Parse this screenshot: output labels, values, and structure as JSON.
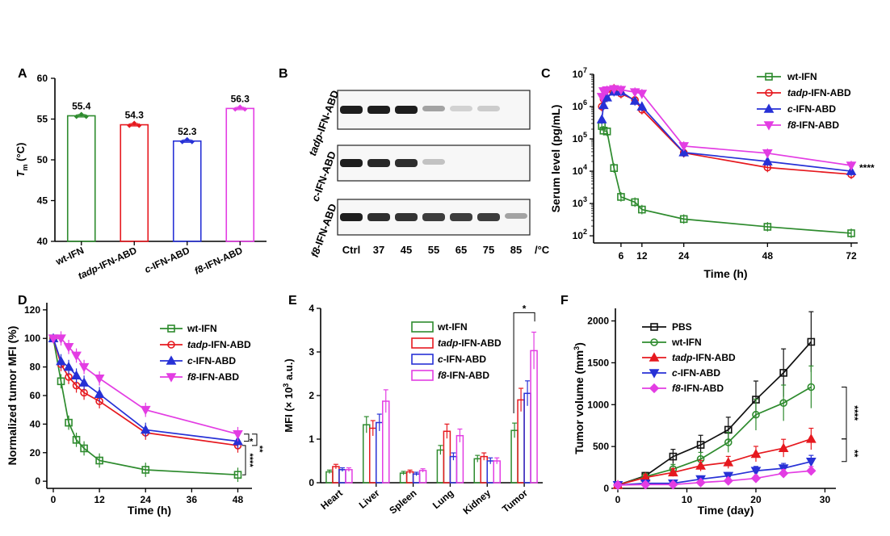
{
  "panels": [
    {
      "id": "A",
      "letter": "A",
      "type": "bar",
      "ylabel_main": "T",
      "ylabel_sub": "m",
      "ylabel_unit": " (°C)",
      "categories": [
        {
          "pre": "",
          "post": "wt-IFN"
        },
        {
          "pre": "tadp",
          "post": "-IFN-ABD"
        },
        {
          "pre": "c",
          "post": "-IFN-ABD"
        },
        {
          "pre": "f8",
          "post": "-IFN-ABD"
        }
      ],
      "values": [
        55.4,
        54.3,
        52.3,
        56.3
      ],
      "value_labels": [
        "55.4",
        "54.3",
        "52.3",
        "56.3"
      ],
      "colors": [
        "#2e8b2e",
        "#e6191f",
        "#2731d6",
        "#e33de3"
      ],
      "ylim": [
        40,
        60
      ],
      "yticks": [
        "40",
        "45",
        "50",
        "55",
        "60"
      ],
      "yticks_v": [
        40,
        45,
        50,
        55,
        60
      ]
    },
    {
      "id": "B",
      "letter": "B",
      "type": "gel",
      "rows": [
        {
          "pre": "tadp",
          "post": "-IFN-ABD",
          "intensities": [
            1.0,
            1.0,
            1.0,
            0.35,
            0.12,
            0.15,
            0
          ]
        },
        {
          "pre": "c",
          "post": "-IFN-ABD",
          "intensities": [
            1.0,
            0.95,
            0.92,
            0.2,
            0,
            0,
            0
          ]
        },
        {
          "pre": "f8",
          "post": "-IFN-ABD",
          "intensities": [
            1.0,
            0.92,
            0.9,
            0.85,
            0.85,
            0.85,
            0.35
          ]
        }
      ],
      "lanes": [
        "Ctrl",
        "37",
        "45",
        "55",
        "65",
        "75",
        "85"
      ],
      "unit": "/°C"
    },
    {
      "id": "C",
      "letter": "C",
      "type": "line",
      "scale": "log",
      "xlabel": "Time (h)",
      "ylabel": "Serum level (pg/mL)",
      "xticks": [
        6,
        12,
        24,
        48,
        72
      ],
      "xlim": [
        0,
        72
      ],
      "yticks_v": [
        100,
        1000,
        10000,
        100000,
        1000000,
        10000000
      ],
      "yticks_base": "10",
      "yticks_exp": [
        "2",
        "3",
        "4",
        "5",
        "6",
        "7"
      ],
      "ylim": [
        60,
        10000000
      ],
      "significance": "****",
      "series": [
        {
          "pre": "",
          "post": "wt-IFN",
          "color": "#2e8b2e",
          "marker": "square",
          "x": [
            0.5,
            1,
            2,
            4,
            6,
            10,
            12,
            24,
            48,
            72
          ],
          "y": [
            250000,
            180000,
            170000,
            12500,
            1600,
            1100,
            650,
            330,
            190,
            120
          ]
        },
        {
          "pre": "tadp",
          "post": "-IFN-ABD",
          "color": "#e6191f",
          "marker": "circle",
          "x": [
            0.5,
            1,
            2,
            4,
            6,
            10,
            12,
            24,
            48,
            72
          ],
          "y": [
            1000000,
            1700000,
            2600000,
            3600000,
            2500000,
            1600000,
            800000,
            37000,
            13000,
            8000
          ]
        },
        {
          "pre": "c",
          "post": "-IFN-ABD",
          "color": "#2731d6",
          "marker": "triangle",
          "x": [
            0.5,
            1,
            2,
            4,
            6,
            10,
            12,
            24,
            48,
            72
          ],
          "y": [
            400000,
            1100000,
            1900000,
            2900000,
            2900000,
            1500000,
            1000000,
            38000,
            20000,
            10000
          ]
        },
        {
          "pre": "f8",
          "post": "-IFN-ABD",
          "color": "#e33de3",
          "marker": "tri-down",
          "x": [
            0.5,
            1,
            2,
            4,
            6,
            10,
            12,
            24,
            48,
            72
          ],
          "y": [
            2000000,
            3000000,
            3200000,
            3500000,
            3300000,
            2800000,
            2500000,
            60000,
            36000,
            15000
          ]
        }
      ]
    },
    {
      "id": "D",
      "letter": "D",
      "type": "line",
      "xlabel": "Time (h)",
      "ylabel": "Normalized tumor MFI (%)",
      "xticks": [
        0,
        12,
        24,
        36,
        48
      ],
      "xlim": [
        0,
        50
      ],
      "yticks": [
        0,
        20,
        40,
        60,
        80,
        100,
        120
      ],
      "ylim": [
        -5,
        125
      ],
      "sig_top": "*",
      "sig_mid": "**",
      "sig_bot": "****",
      "series": [
        {
          "pre": "",
          "post": "wt-IFN",
          "color": "#2e8b2e",
          "marker": "square",
          "x": [
            0,
            2,
            4,
            6,
            8,
            12,
            24,
            48
          ],
          "y": [
            100,
            70,
            41,
            29,
            23,
            14.5,
            8,
            4.5
          ]
        },
        {
          "pre": "tadp",
          "post": "-IFN-ABD",
          "color": "#e6191f",
          "marker": "circle",
          "x": [
            0,
            2,
            4,
            6,
            8,
            12,
            24,
            48
          ],
          "y": [
            100,
            82,
            73,
            67,
            62,
            56,
            34,
            25
          ]
        },
        {
          "pre": "c",
          "post": "-IFN-ABD",
          "color": "#2731d6",
          "marker": "triangle",
          "x": [
            0,
            2,
            4,
            6,
            8,
            12,
            24,
            48
          ],
          "y": [
            100,
            84,
            80,
            74,
            69,
            61,
            36,
            28
          ]
        },
        {
          "pre": "f8",
          "post": "-IFN-ABD",
          "color": "#e33de3",
          "marker": "tri-down",
          "x": [
            0,
            2,
            4,
            6,
            8,
            12,
            24,
            48
          ],
          "y": [
            100,
            100,
            94,
            88,
            80,
            72,
            50,
            33
          ]
        }
      ]
    },
    {
      "id": "E",
      "letter": "E",
      "type": "grouped-bar",
      "ylabel_pre": "MFI (× 10",
      "ylabel_exp": "3",
      "ylabel_post": " a.u.)",
      "categories": [
        "Heart",
        "Liver",
        "Spleen",
        "Lung",
        "Kidney",
        "Tumor"
      ],
      "ylim": [
        0,
        4
      ],
      "yticks": [
        0,
        1,
        2,
        3,
        4
      ],
      "significance": "*",
      "series": [
        {
          "pre": "",
          "post": "wt-IFN",
          "color": "#2e8b2e",
          "values": [
            0.25,
            1.33,
            0.22,
            0.75,
            0.55,
            1.2
          ]
        },
        {
          "pre": "tadp",
          "post": "-IFN-ABD",
          "color": "#e6191f",
          "values": [
            0.37,
            1.25,
            0.25,
            1.18,
            0.6,
            1.9
          ]
        },
        {
          "pre": "c",
          "post": "-IFN-ABD",
          "color": "#2731d6",
          "values": [
            0.3,
            1.38,
            0.2,
            0.6,
            0.5,
            2.05
          ]
        },
        {
          "pre": "f8",
          "post": "-IFN-ABD",
          "color": "#e33de3",
          "values": [
            0.3,
            1.87,
            0.28,
            1.08,
            0.5,
            3.03
          ]
        }
      ]
    },
    {
      "id": "F",
      "letter": "F",
      "type": "line",
      "xlabel": "Time (day)",
      "ylabel_pre": "Tumor volume (mm",
      "ylabel_exp": "3",
      "ylabel_post": ")",
      "xticks": [
        0,
        10,
        20,
        30
      ],
      "xlim": [
        0,
        31
      ],
      "yticks": [
        0,
        500,
        1000,
        1500,
        2000
      ],
      "ylim": [
        0,
        2150
      ],
      "sig_top": "****",
      "sig_bot": "**",
      "series": [
        {
          "pre": "",
          "post": "PBS",
          "color": "#111111",
          "marker": "square",
          "x": [
            0,
            4,
            8,
            12,
            16,
            20,
            24,
            28
          ],
          "y": [
            40,
            150,
            380,
            520,
            700,
            1060,
            1380,
            1750
          ]
        },
        {
          "pre": "",
          "post": "wt-IFN",
          "color": "#2e8b2e",
          "marker": "circle",
          "x": [
            0,
            4,
            8,
            12,
            16,
            20,
            24,
            28
          ],
          "y": [
            40,
            140,
            230,
            350,
            550,
            880,
            1020,
            1210
          ]
        },
        {
          "pre": "tadp",
          "post": "-IFN-ABD",
          "color": "#e6191f",
          "marker": "triangle",
          "x": [
            0,
            4,
            8,
            12,
            16,
            20,
            24,
            28
          ],
          "y": [
            40,
            130,
            190,
            270,
            310,
            410,
            480,
            590
          ]
        },
        {
          "pre": "c",
          "post": "-IFN-ABD",
          "color": "#2731d6",
          "marker": "tri-down",
          "x": [
            0,
            4,
            8,
            12,
            16,
            20,
            24,
            28
          ],
          "y": [
            40,
            60,
            60,
            110,
            150,
            210,
            240,
            320
          ]
        },
        {
          "pre": "f8",
          "post": "-IFN-ABD",
          "color": "#e33de3",
          "marker": "diamond",
          "x": [
            0,
            4,
            8,
            12,
            16,
            20,
            24,
            28
          ],
          "y": [
            40,
            45,
            45,
            70,
            90,
            120,
            180,
            210
          ]
        }
      ]
    }
  ]
}
